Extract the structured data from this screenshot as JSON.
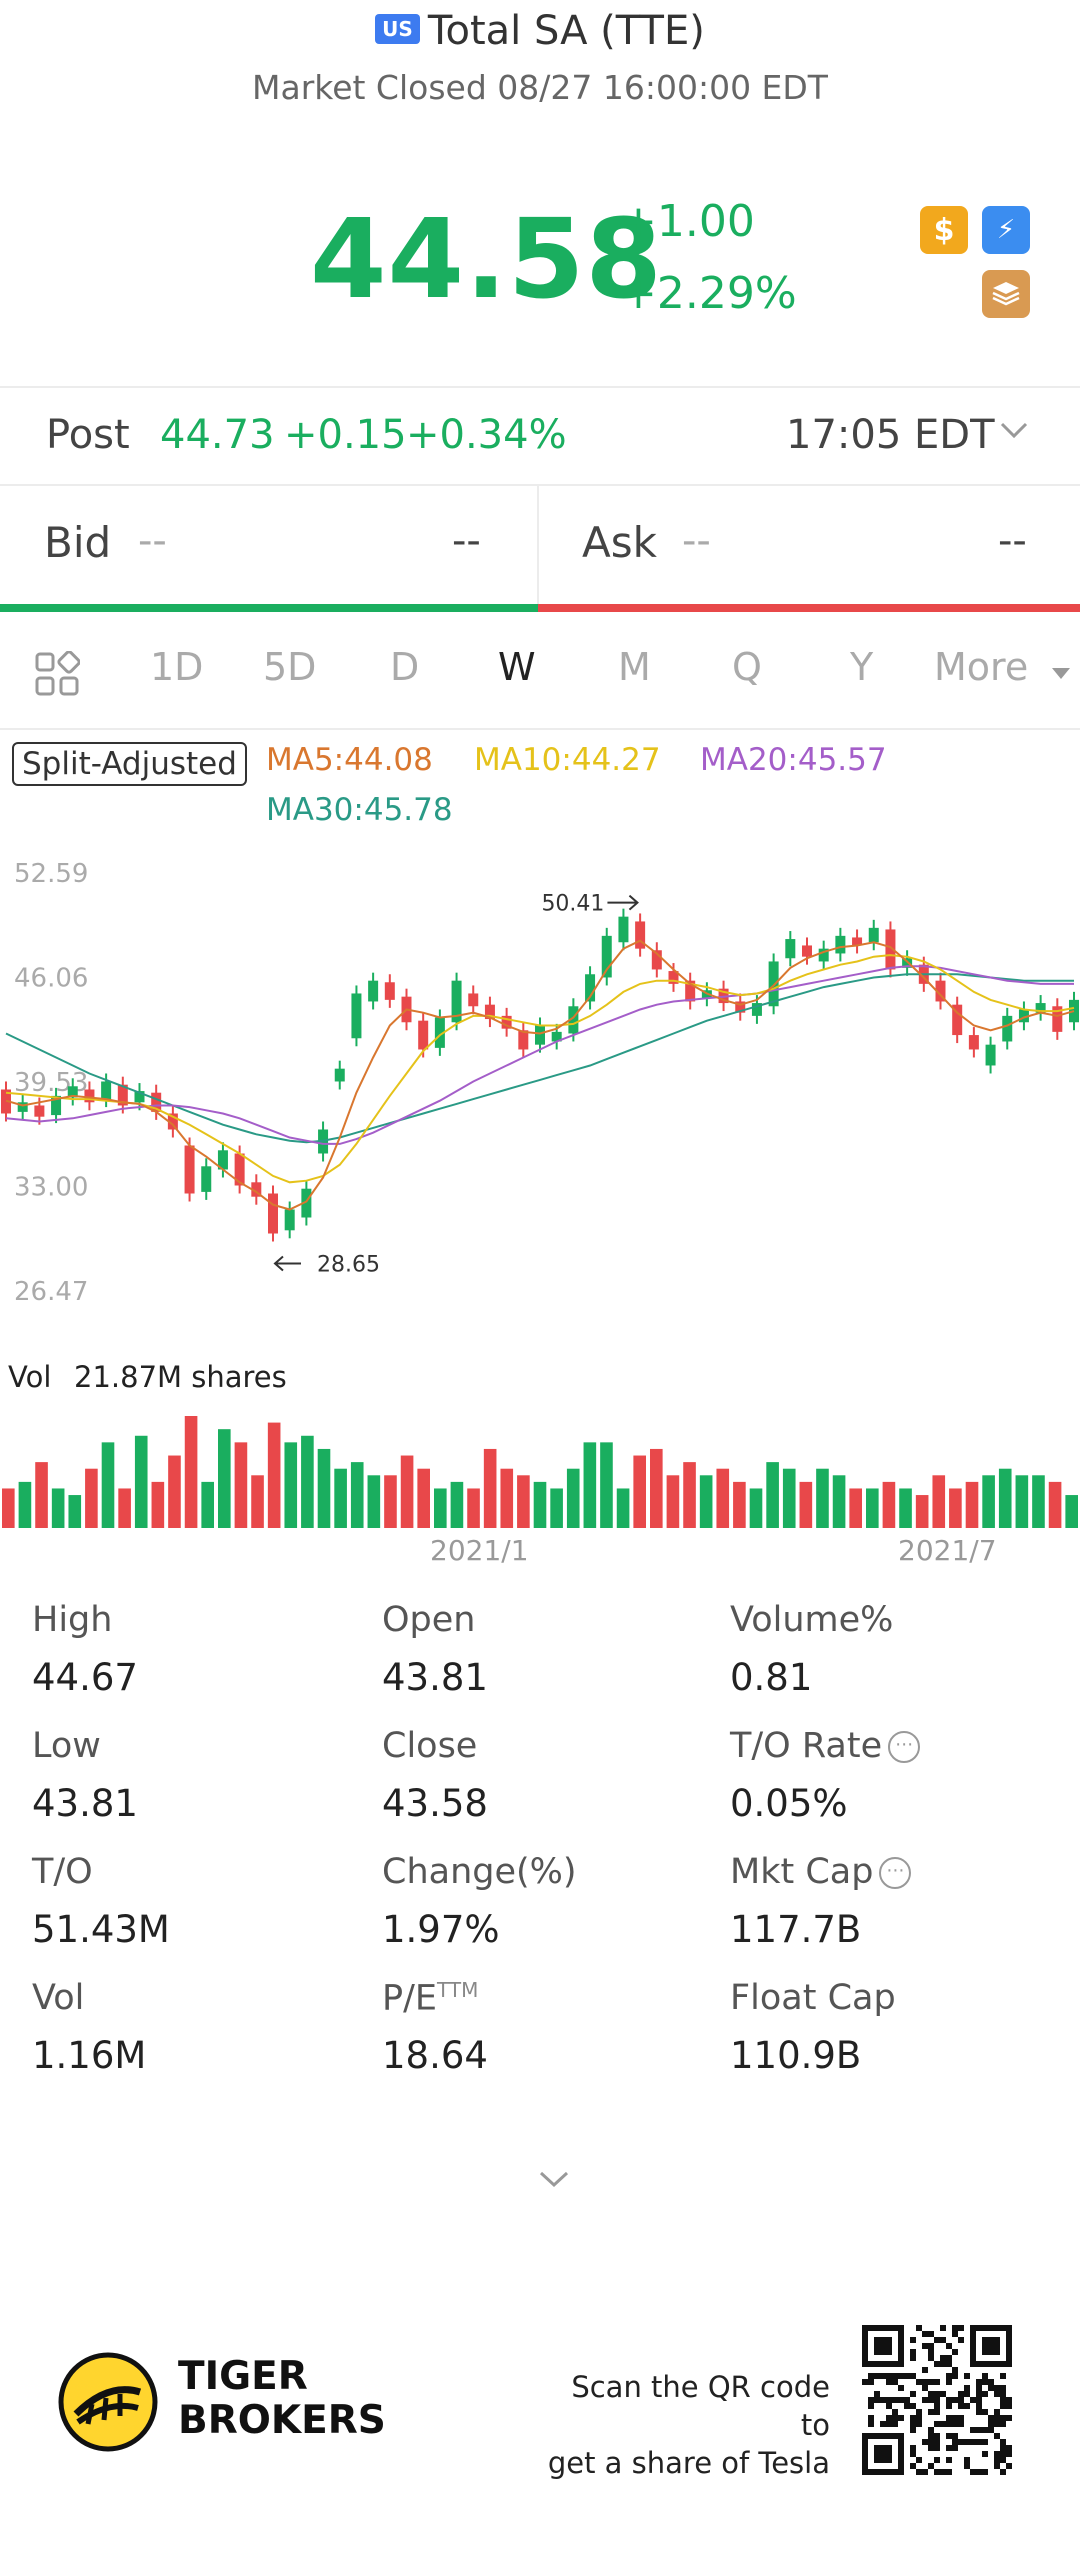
{
  "header": {
    "market_badge": "US",
    "title": "Total SA (TTE)",
    "subtitle": "Market Closed 08/27 16:00:00 EDT"
  },
  "quote": {
    "price": "44.58",
    "change": "+1.00",
    "change_pct": "+2.29%",
    "icons": [
      "dollar-icon",
      "lightning-icon",
      "layers-icon"
    ],
    "color_up": "#1aae5f",
    "color_down": "#e8484a"
  },
  "post": {
    "label": "Post",
    "price": "44.73",
    "change": "+0.15",
    "change_pct": "+0.34%",
    "time": "17:05 EDT"
  },
  "bid_ask": {
    "bid_label": "Bid",
    "bid_price": "--",
    "bid_size": "--",
    "ask_label": "Ask",
    "ask_price": "--",
    "ask_size": "--"
  },
  "tabs": {
    "items": [
      "1D",
      "5D",
      "D",
      "W",
      "M",
      "Q",
      "Y",
      "More"
    ],
    "active": "W"
  },
  "chart_legend": {
    "split_label": "Split-Adjusted",
    "ma5": "MA5:44.08",
    "ma10": "MA10:44.27",
    "ma20": "MA20:45.57",
    "ma30": "MA30:45.78",
    "ma5_color": "#d9772f",
    "ma10_color": "#e5c21a",
    "ma20_color": "#a45ec9",
    "ma30_color": "#2a9a86"
  },
  "chart_data": {
    "type": "candlestick",
    "y_ticks": [
      "52.59",
      "46.06",
      "39.53",
      "33.00",
      "26.47"
    ],
    "ylim": [
      26.47,
      52.59
    ],
    "x_labels": [
      "2021/1",
      "2021/7"
    ],
    "high_marker": "50.41",
    "low_marker": "28.65",
    "candles": [
      {
        "o": 39.0,
        "c": 37.5
      },
      {
        "o": 37.6,
        "c": 38.2
      },
      {
        "o": 38.0,
        "c": 37.3
      },
      {
        "o": 37.4,
        "c": 38.6
      },
      {
        "o": 38.5,
        "c": 39.2
      },
      {
        "o": 39.0,
        "c": 38.2
      },
      {
        "o": 38.4,
        "c": 39.5
      },
      {
        "o": 39.3,
        "c": 38.0
      },
      {
        "o": 38.2,
        "c": 38.9
      },
      {
        "o": 38.8,
        "c": 37.6
      },
      {
        "o": 37.5,
        "c": 36.5
      },
      {
        "o": 35.5,
        "c": 32.5
      },
      {
        "o": 32.6,
        "c": 34.2
      },
      {
        "o": 34.0,
        "c": 35.2
      },
      {
        "o": 35.0,
        "c": 33.0
      },
      {
        "o": 33.2,
        "c": 32.3
      },
      {
        "o": 32.5,
        "c": 30.0
      },
      {
        "o": 30.2,
        "c": 31.5
      },
      {
        "o": 31.0,
        "c": 32.8
      },
      {
        "o": 35.0,
        "c": 36.5
      },
      {
        "o": 39.5,
        "c": 40.3
      },
      {
        "o": 42.2,
        "c": 45.0
      },
      {
        "o": 44.5,
        "c": 45.8
      },
      {
        "o": 45.7,
        "c": 44.6
      },
      {
        "o": 44.8,
        "c": 43.2
      },
      {
        "o": 43.3,
        "c": 41.5
      },
      {
        "o": 41.6,
        "c": 43.5
      },
      {
        "o": 43.2,
        "c": 45.8
      },
      {
        "o": 45.0,
        "c": 44.2
      },
      {
        "o": 44.3,
        "c": 43.4
      },
      {
        "o": 43.6,
        "c": 42.8
      },
      {
        "o": 42.7,
        "c": 41.5
      },
      {
        "o": 41.8,
        "c": 43.0
      },
      {
        "o": 42.0,
        "c": 42.6
      },
      {
        "o": 42.5,
        "c": 44.2
      },
      {
        "o": 44.5,
        "c": 46.2
      },
      {
        "o": 46.0,
        "c": 48.6
      },
      {
        "o": 48.2,
        "c": 49.8
      },
      {
        "o": 49.5,
        "c": 47.8
      },
      {
        "o": 47.7,
        "c": 46.5
      },
      {
        "o": 46.4,
        "c": 45.6
      },
      {
        "o": 45.8,
        "c": 44.5
      },
      {
        "o": 44.7,
        "c": 45.2
      },
      {
        "o": 45.3,
        "c": 44.4
      },
      {
        "o": 44.5,
        "c": 43.8
      },
      {
        "o": 43.6,
        "c": 44.4
      },
      {
        "o": 44.2,
        "c": 47.0
      },
      {
        "o": 47.2,
        "c": 48.4
      },
      {
        "o": 48.0,
        "c": 47.3
      },
      {
        "o": 47.0,
        "c": 47.8
      },
      {
        "o": 47.5,
        "c": 48.6
      },
      {
        "o": 48.5,
        "c": 48.0
      },
      {
        "o": 48.2,
        "c": 49.1
      },
      {
        "o": 49.0,
        "c": 46.5
      },
      {
        "o": 46.6,
        "c": 47.2
      },
      {
        "o": 46.8,
        "c": 45.6
      },
      {
        "o": 45.8,
        "c": 44.5
      },
      {
        "o": 44.3,
        "c": 42.4
      },
      {
        "o": 42.4,
        "c": 41.5
      },
      {
        "o": 40.5,
        "c": 41.8
      },
      {
        "o": 42.0,
        "c": 43.6
      },
      {
        "o": 43.2,
        "c": 44.0
      },
      {
        "o": 43.8,
        "c": 44.4
      },
      {
        "o": 44.2,
        "c": 42.6
      },
      {
        "o": 43.2,
        "c": 44.6
      }
    ],
    "ma5": [
      38.3,
      38.0,
      38.2,
      38.4,
      38.6,
      38.5,
      38.4,
      38.2,
      38.1,
      37.6,
      36.8,
      35.5,
      34.8,
      34.0,
      33.2,
      32.6,
      31.8,
      31.5,
      32.0,
      33.5,
      36.0,
      38.8,
      41.0,
      43.0,
      44.0,
      43.8,
      43.5,
      43.6,
      43.8,
      43.5,
      43.0,
      42.6,
      42.5,
      42.8,
      43.5,
      44.8,
      46.5,
      47.8,
      48.3,
      47.5,
      46.5,
      45.6,
      45.0,
      44.6,
      44.3,
      44.6,
      45.5,
      46.6,
      47.2,
      47.6,
      47.9,
      48.0,
      48.2,
      47.9,
      47.0,
      46.0,
      44.9,
      43.8,
      43.0,
      42.7,
      43.0,
      43.5,
      43.8,
      43.6,
      43.9
    ],
    "ma10": [
      38.8,
      38.7,
      38.6,
      38.5,
      38.4,
      38.4,
      38.3,
      38.2,
      38.1,
      37.8,
      37.3,
      36.8,
      36.2,
      35.6,
      35.0,
      34.3,
      33.6,
      33.2,
      33.3,
      33.6,
      34.3,
      35.6,
      37.1,
      38.6,
      40.0,
      41.4,
      42.4,
      43.1,
      43.6,
      43.6,
      43.4,
      43.2,
      43.0,
      43.0,
      43.1,
      43.6,
      44.3,
      45.1,
      45.6,
      45.8,
      45.8,
      45.6,
      45.4,
      45.1,
      44.9,
      45.0,
      45.3,
      45.8,
      46.2,
      46.5,
      46.8,
      47.0,
      47.3,
      47.4,
      47.3,
      47.0,
      46.5,
      45.8,
      45.1,
      44.6,
      44.3,
      44.0,
      43.9,
      43.9,
      44.1
    ],
    "ma20": [
      37.2,
      37.1,
      37.0,
      37.1,
      37.2,
      37.4,
      37.6,
      37.8,
      37.9,
      38.0,
      38.0,
      37.9,
      37.7,
      37.5,
      37.2,
      36.8,
      36.4,
      36.0,
      35.8,
      35.6,
      35.6,
      35.9,
      36.3,
      36.8,
      37.3,
      37.8,
      38.3,
      38.9,
      39.5,
      40.0,
      40.5,
      41.0,
      41.5,
      42.0,
      42.4,
      42.8,
      43.2,
      43.6,
      44.0,
      44.3,
      44.5,
      44.6,
      44.7,
      44.8,
      44.9,
      45.0,
      45.2,
      45.4,
      45.6,
      45.8,
      46.0,
      46.2,
      46.4,
      46.6,
      46.7,
      46.7,
      46.6,
      46.4,
      46.2,
      46.0,
      45.8,
      45.7,
      45.6,
      45.6,
      45.6
    ],
    "ma30": [
      42.5,
      42.0,
      41.5,
      41.0,
      40.5,
      40.0,
      39.6,
      39.2,
      38.8,
      38.4,
      38.0,
      37.6,
      37.2,
      36.8,
      36.5,
      36.2,
      36.0,
      35.8,
      35.7,
      35.8,
      36.0,
      36.3,
      36.6,
      36.9,
      37.2,
      37.5,
      37.8,
      38.1,
      38.4,
      38.7,
      39.0,
      39.3,
      39.6,
      39.9,
      40.2,
      40.5,
      40.9,
      41.3,
      41.7,
      42.1,
      42.5,
      42.9,
      43.3,
      43.6,
      43.9,
      44.2,
      44.5,
      44.8,
      45.1,
      45.4,
      45.6,
      45.8,
      46.0,
      46.1,
      46.2,
      46.2,
      46.2,
      46.2,
      46.1,
      46.0,
      45.9,
      45.8,
      45.8,
      45.8,
      45.8
    ]
  },
  "volume": {
    "label": "Vol",
    "value": "21.87M shares",
    "bars": [
      6,
      7,
      10,
      6,
      5,
      9,
      13,
      6,
      14,
      7,
      11,
      17,
      7,
      15,
      13,
      8,
      16,
      13,
      14,
      12,
      9,
      10,
      8,
      8,
      11,
      9,
      6,
      7,
      6,
      12,
      9,
      8,
      7,
      6,
      9,
      13,
      13,
      6,
      11,
      12,
      8,
      10,
      8,
      9,
      7,
      6,
      10,
      9,
      7,
      9,
      8,
      6,
      6,
      7,
      6,
      5,
      8,
      6,
      7,
      8,
      9,
      8,
      8,
      7,
      5
    ]
  },
  "stats": [
    {
      "label": "High",
      "value": "44.67"
    },
    {
      "label": "Open",
      "value": "43.81"
    },
    {
      "label": "Volume%",
      "value": "0.81"
    },
    {
      "label": "Low",
      "value": "43.81"
    },
    {
      "label": "Close",
      "value": "43.58"
    },
    {
      "label": "T/O Rate",
      "value": "0.05%"
    },
    {
      "label": "T/O",
      "value": "51.43M"
    },
    {
      "label": "Change(%)",
      "value": "1.97%"
    },
    {
      "label": "Mkt Cap",
      "value": "117.7B"
    },
    {
      "label": "Vol",
      "value": "1.16M"
    },
    {
      "label": "P/E",
      "value": "18.64",
      "sup": "TTM"
    },
    {
      "label": "Float Cap",
      "value": "110.9B"
    }
  ],
  "footer": {
    "brand_line1": "TIGER",
    "brand_line2": "BROKERS",
    "scan_line1": "Scan the QR code to",
    "scan_line2": "get a share of Tesla"
  }
}
